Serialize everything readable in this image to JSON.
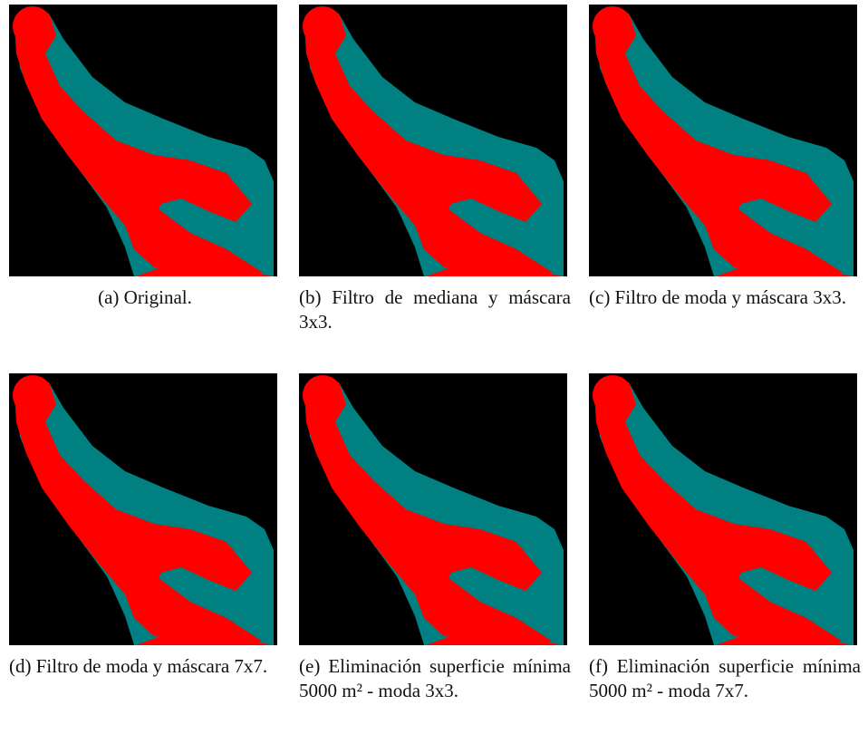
{
  "figure": {
    "panels": [
      {
        "caption": "(a) Original."
      },
      {
        "caption": "(b) Filtro de mediana y máscara 3x3."
      },
      {
        "caption": "(c) Filtro de moda y máscara 3x3."
      },
      {
        "caption": "(d) Filtro de moda y máscara 7x7."
      },
      {
        "caption": "(e) Eliminación superficie mínima 5000 m² - moda 3x3."
      },
      {
        "caption": "(f) Eliminación superficie mínima 5000 m² - moda 7x7."
      }
    ]
  }
}
